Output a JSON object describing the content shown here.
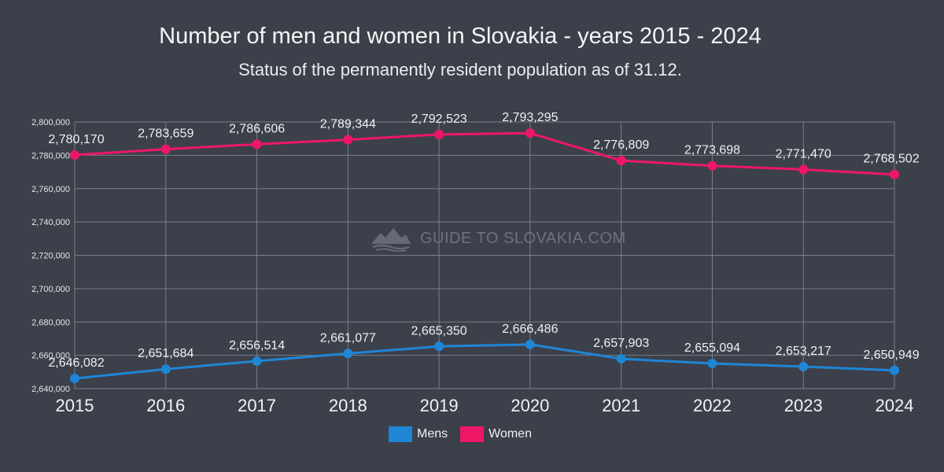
{
  "page": {
    "title": "Number of men and women in Slovakia - years 2015 - 2024",
    "subtitle": "Status of the permanently resident population as of 31.12.",
    "watermark": "GUIDE TO SLOVAKIA.COM"
  },
  "chart_data": {
    "type": "line",
    "title": "Number of men and women in Slovakia - years 2015 - 2024",
    "subtitle": "Status of the permanently resident population as of 31.12.",
    "x": [
      "2015",
      "2016",
      "2017",
      "2018",
      "2019",
      "2020",
      "2021",
      "2022",
      "2023",
      "2024"
    ],
    "ylim": [
      2640000,
      2800000
    ],
    "yticks": [
      "2,640,000",
      "2,660,000",
      "2,680,000",
      "2,700,000",
      "2,720,000",
      "2,740,000",
      "2,760,000",
      "2,780,000",
      "2,800,000"
    ],
    "grid": true,
    "legend_position": "bottom",
    "series": [
      {
        "name": "Mens",
        "color": "#1f86d6",
        "values": [
          2646082,
          2651684,
          2656514,
          2661077,
          2665350,
          2666486,
          2657903,
          2655094,
          2653217,
          2650949
        ],
        "labels": [
          "2,646,082",
          "2,651,684",
          "2,656,514",
          "2,661,077",
          "2,665,350",
          "2,666,486",
          "2,657,903",
          "2,655,094",
          "2,653,217",
          "2,650,949"
        ]
      },
      {
        "name": "Women",
        "color": "#ee1766",
        "values": [
          2780170,
          2783659,
          2786606,
          2789344,
          2792523,
          2793295,
          2776809,
          2773698,
          2771470,
          2768502
        ],
        "labels": [
          "2,780,170",
          "2,783,659",
          "2,786,606",
          "2,789,344",
          "2,792,523",
          "2,793,295",
          "2,776,809",
          "2,773,698",
          "2,771,470",
          "2,768,502"
        ]
      }
    ]
  }
}
